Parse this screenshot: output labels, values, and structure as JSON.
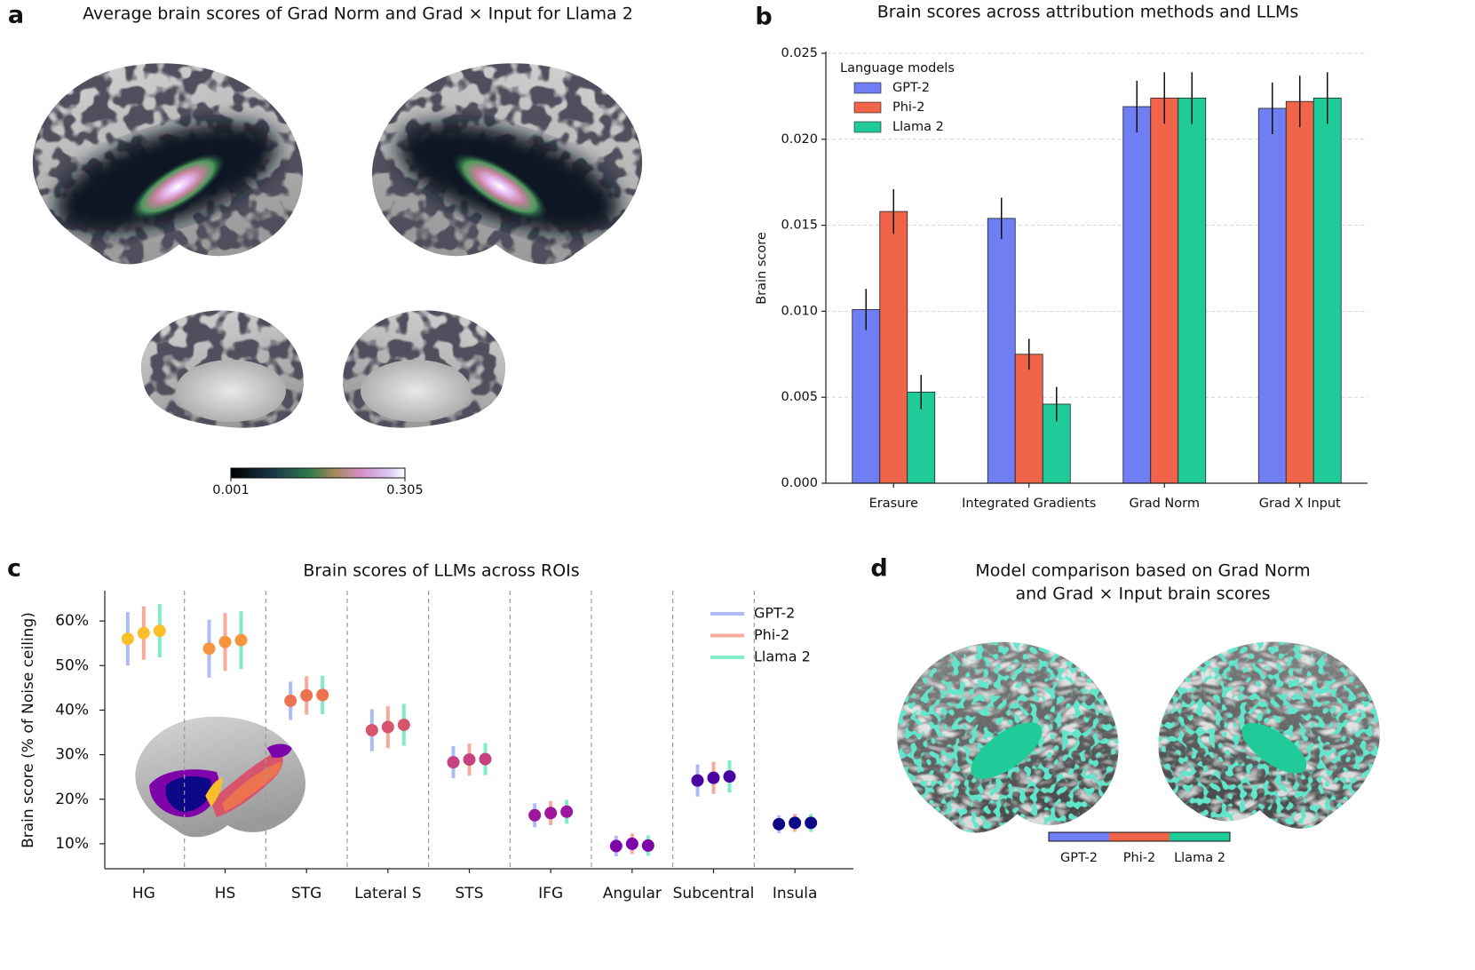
{
  "chart_data": [
    {
      "type": "brain-map",
      "panel": "a",
      "title": "Average brain scores of Grad Norm and Grad × Input for Llama 2",
      "colorbar": {
        "lim": [
          0.001,
          0.305
        ],
        "ticks": [
          0.001,
          0.305
        ]
      }
    },
    {
      "type": "bar",
      "panel": "b",
      "title": "Brain scores across attribution methods and LLMs",
      "ylabel": "Brain score",
      "legend_title": "Language models",
      "legend": "upper left",
      "grid": true,
      "categories": [
        "Erasure",
        "Integrated Gradients",
        "Grad Norm",
        "Grad X Input"
      ],
      "series": [
        {
          "name": "GPT-2",
          "color": "#6f7ef2",
          "values": [
            0.0101,
            0.0154,
            0.0219,
            0.0218
          ],
          "errors": [
            0.0012,
            0.0012,
            0.0015,
            0.0015
          ]
        },
        {
          "name": "Phi-2",
          "color": "#f0644a",
          "values": [
            0.0158,
            0.0075,
            0.0224,
            0.0222
          ],
          "errors": [
            0.0013,
            0.0009,
            0.0015,
            0.0015
          ]
        },
        {
          "name": "Llama 2",
          "color": "#1fcb99",
          "values": [
            0.0053,
            0.0046,
            0.0224,
            0.0224
          ],
          "errors": [
            0.001,
            0.001,
            0.0015,
            0.0015
          ]
        }
      ],
      "ylim": [
        0,
        0.025
      ],
      "yticks": [
        {
          "value": 0,
          "label": "0.000"
        },
        {
          "value": 0.005,
          "label": "0.005"
        },
        {
          "value": 0.01,
          "label": "0.010"
        },
        {
          "value": 0.015,
          "label": "0.015"
        },
        {
          "value": 0.02,
          "label": "0.020"
        },
        {
          "value": 0.025,
          "label": "0.025"
        }
      ]
    },
    {
      "type": "dot-error",
      "panel": "c",
      "title": "Brain scores of LLMs across ROIs",
      "ylabel": "Brain score (% of Noise ceiling)",
      "legend": "upper right",
      "categories": [
        "HG",
        "HS",
        "STG",
        "Lateral S",
        "STS",
        "IFG",
        "Angular",
        "Subcentral",
        "Insula"
      ],
      "dot_colors": [
        "#fbbf2b",
        "#f7943f",
        "#ec7250",
        "#d6556c",
        "#c6417d",
        "#9c179e",
        "#7e03a8",
        "#4a02a0",
        "#0d0887"
      ],
      "series": [
        {
          "name": "GPT-2",
          "color": "#aebbf6",
          "values": [
            56.0,
            53.8,
            42.1,
            35.5,
            28.3,
            16.4,
            9.5,
            24.2,
            14.4
          ],
          "errors": [
            6.0,
            6.5,
            4.3,
            4.7,
            3.6,
            2.7,
            2.3,
            3.6,
            2.0
          ]
        },
        {
          "name": "Phi-2",
          "color": "#f6ab9b",
          "values": [
            57.3,
            55.3,
            43.3,
            36.2,
            28.9,
            16.9,
            10.0,
            24.8,
            14.7
          ],
          "errors": [
            6.0,
            6.5,
            4.3,
            4.7,
            3.6,
            2.7,
            2.3,
            3.6,
            2.0
          ]
        },
        {
          "name": "Llama 2",
          "color": "#82ebc7",
          "values": [
            57.8,
            55.7,
            43.4,
            36.7,
            29.0,
            17.2,
            9.6,
            25.1,
            14.7
          ],
          "errors": [
            6.0,
            6.5,
            4.3,
            4.7,
            3.6,
            2.7,
            2.3,
            3.6,
            2.0
          ]
        }
      ],
      "ylim": [
        4.4,
        66.8
      ],
      "yticks": [
        {
          "value": 10,
          "label": "10%"
        },
        {
          "value": 20,
          "label": "20%"
        },
        {
          "value": 30,
          "label": "30%"
        },
        {
          "value": 40,
          "label": "40%"
        },
        {
          "value": 50,
          "label": "50%"
        },
        {
          "value": 60,
          "label": "60%"
        }
      ]
    },
    {
      "type": "brain-map",
      "panel": "d",
      "title": [
        "Model comparison based on Grad Norm",
        "and Grad × Input brain scores"
      ],
      "colorbar": {
        "categories": [
          "GPT-2",
          "Phi-2",
          "Llama 2"
        ],
        "colors": [
          "#6f7ef2",
          "#f0644a",
          "#1fcb99"
        ]
      }
    }
  ]
}
